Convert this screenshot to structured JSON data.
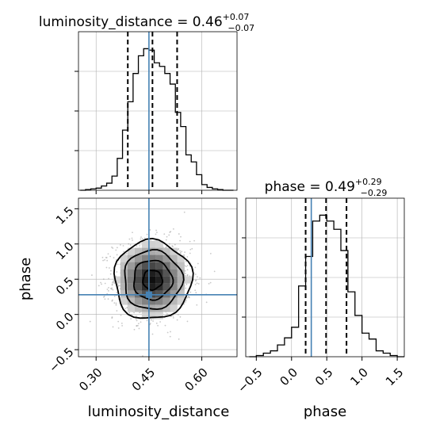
{
  "chart_data": [
    {
      "type": "histogram",
      "panel": "luminosity_distance marginal",
      "title": {
        "param": "luminosity_distance",
        "value": "0.46",
        "plus": "+0.07",
        "minus": "−0.07"
      },
      "x_range": [
        0.25,
        0.7
      ],
      "bins": [
        0.255,
        0.27,
        0.285,
        0.3,
        0.315,
        0.33,
        0.345,
        0.36,
        0.375,
        0.39,
        0.405,
        0.42,
        0.435,
        0.45,
        0.465,
        0.48,
        0.495,
        0.51,
        0.525,
        0.54,
        0.555,
        0.57,
        0.585,
        0.6,
        0.615,
        0.63,
        0.645,
        0.66,
        0.675,
        0.69
      ],
      "counts": [
        0,
        1,
        2,
        3,
        6,
        10,
        20,
        45,
        85,
        125,
        165,
        190,
        200,
        198,
        180,
        175,
        165,
        150,
        110,
        90,
        50,
        40,
        22,
        8,
        4,
        2,
        1,
        0,
        0
      ],
      "quantile_lines": [
        0.39,
        0.46,
        0.53
      ],
      "truth": 0.45,
      "grid": true
    },
    {
      "type": "histogram",
      "panel": "phase marginal",
      "title": {
        "param": "phase",
        "value": "0.49",
        "plus": "+0.29",
        "minus": "−0.29"
      },
      "x_range": [
        -0.65,
        1.6
      ],
      "bins": [
        -0.6,
        -0.5,
        -0.4,
        -0.3,
        -0.2,
        -0.1,
        0.0,
        0.1,
        0.2,
        0.3,
        0.4,
        0.5,
        0.6,
        0.7,
        0.8,
        0.9,
        1.0,
        1.1,
        1.2,
        1.3,
        1.4,
        1.5,
        1.6
      ],
      "counts": [
        0,
        1,
        3,
        5,
        10,
        16,
        25,
        60,
        85,
        115,
        120,
        115,
        108,
        90,
        55,
        35,
        20,
        15,
        5,
        3,
        1,
        0
      ],
      "quantile_lines": [
        0.2,
        0.49,
        0.78
      ],
      "truth": 0.28,
      "grid": true,
      "xlabel": "phase",
      "xticks": [
        {
          "value": -0.5,
          "label": "−0.5"
        },
        {
          "value": 0.0,
          "label": "0.0"
        },
        {
          "value": 0.5,
          "label": "0.5"
        },
        {
          "value": 1.0,
          "label": "1.0"
        },
        {
          "value": 1.5,
          "label": "1.5"
        }
      ]
    },
    {
      "type": "heatmap",
      "panel": "2D posterior luminosity_distance vs phase",
      "x_range": [
        0.25,
        0.7
      ],
      "y_range": [
        -0.6,
        1.65
      ],
      "xlabel": "luminosity_distance",
      "ylabel": "phase",
      "xticks": [
        {
          "value": 0.3,
          "label": "0.30"
        },
        {
          "value": 0.45,
          "label": "0.45"
        },
        {
          "value": 0.6,
          "label": "0.60"
        }
      ],
      "yticks": [
        {
          "value": -0.5,
          "label": "−0.5"
        },
        {
          "value": 0.0,
          "label": "0.0"
        },
        {
          "value": 0.5,
          "label": "0.5"
        },
        {
          "value": 1.0,
          "label": "1.0"
        },
        {
          "value": 1.5,
          "label": "1.5"
        }
      ],
      "center": {
        "x": 0.46,
        "y": 0.49
      },
      "sigma": {
        "x": 0.055,
        "y": 0.28
      },
      "truth": {
        "x": 0.45,
        "y": 0.28
      },
      "contour_levels": [
        0.5,
        1.0,
        1.5,
        2.0
      ],
      "grid": true
    }
  ],
  "colors": {
    "truth": "#4682b4",
    "hist": "#000000",
    "grid": "#b0b0b0",
    "scatter": "#9a9a9a"
  }
}
